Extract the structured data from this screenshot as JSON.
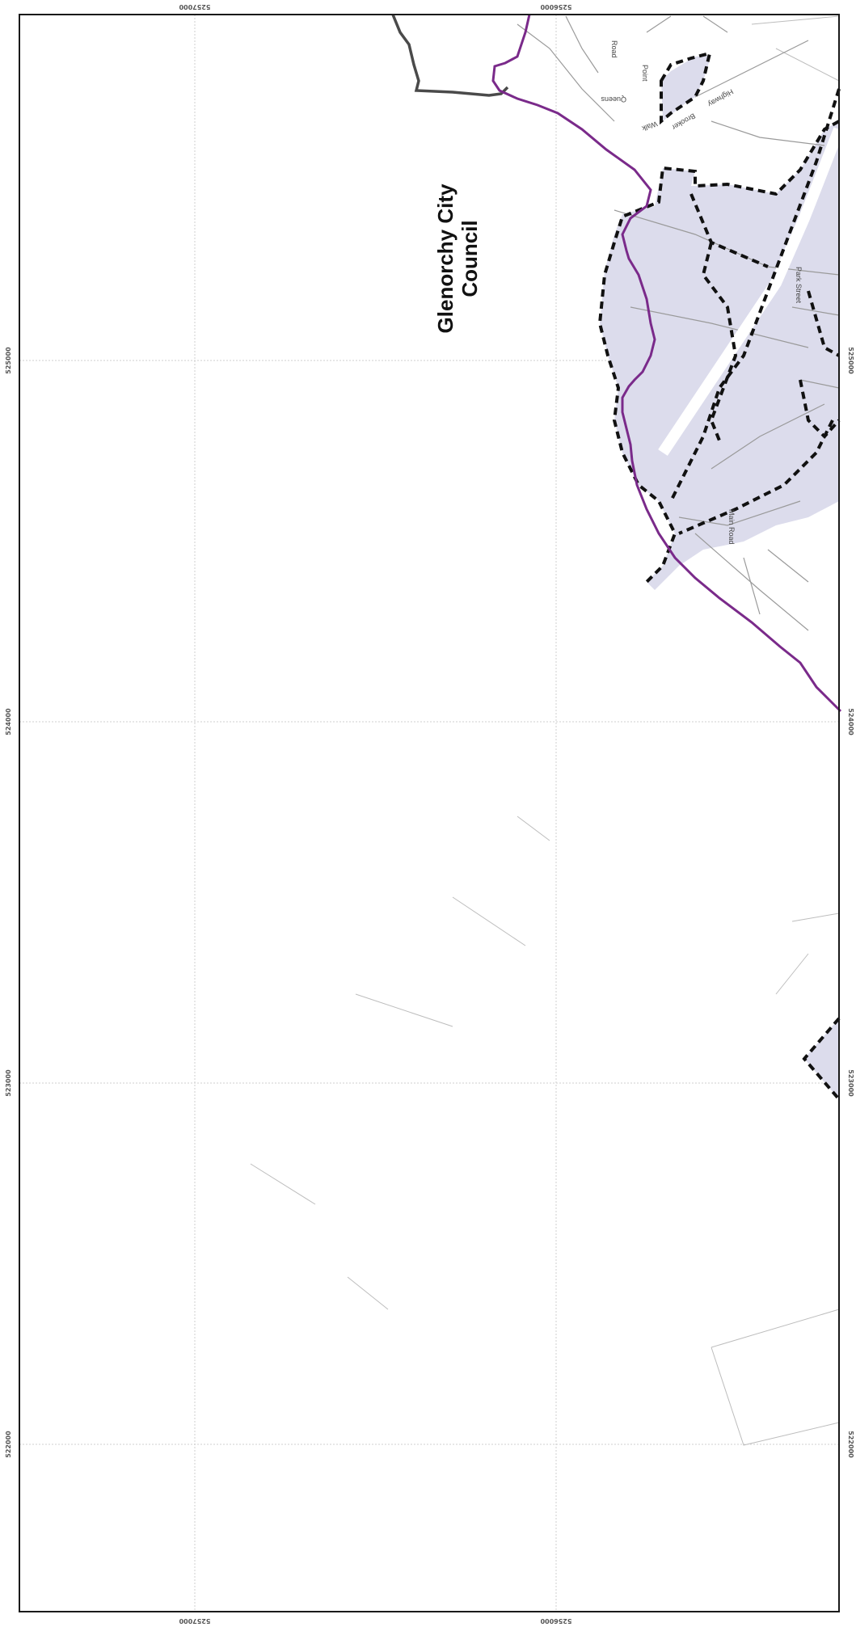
{
  "map": {
    "council_label_line1": "Glenorchy City",
    "council_label_line2": "Council",
    "colors": {
      "frame": "#1a1a1a",
      "grid": "#c8c8c8",
      "district_fill": "#dcdcec",
      "council_boundary": "#7a2a8a",
      "dark_boundary": "#4a4a4a",
      "dashed_boundary": "#111111",
      "road_line": "#9a9a9a"
    },
    "coords": {
      "top_left": "5257000",
      "top_mid": "5256000",
      "bottom_left": "5257000",
      "bottom_mid": "5256000",
      "left": [
        "525000",
        "524000",
        "523000",
        "522000"
      ],
      "right": [
        "525000",
        "524000",
        "523000",
        "522000"
      ]
    },
    "roads": [
      "Road",
      "Point",
      "Queens",
      "Walk",
      "Brooker",
      "Highway",
      "Main Road",
      "Park Street"
    ]
  }
}
